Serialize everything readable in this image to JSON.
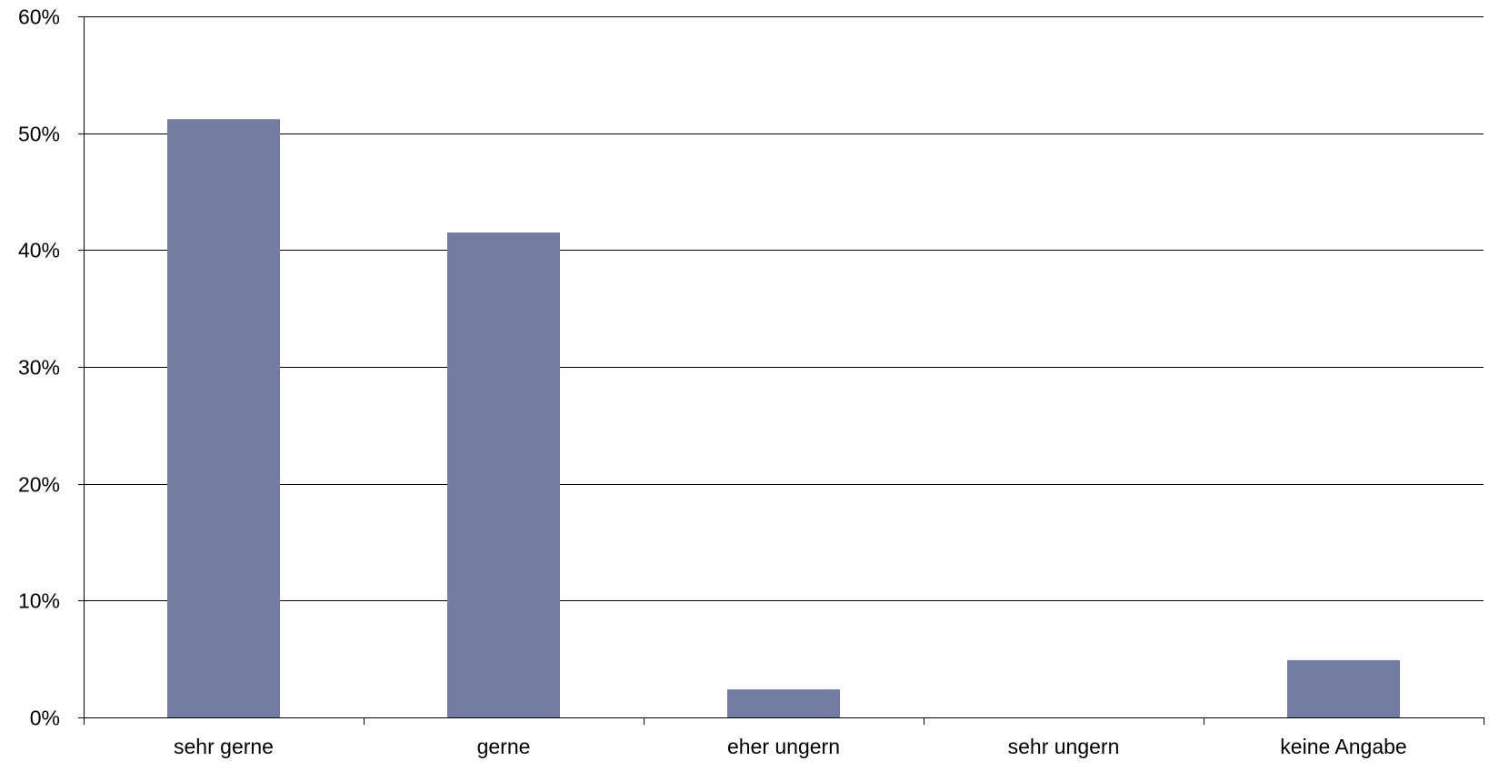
{
  "chart_data": {
    "type": "bar",
    "title": "",
    "xlabel": "",
    "ylabel": "",
    "categories": [
      "sehr gerne",
      "gerne",
      "eher ungern",
      "sehr ungern",
      "keine Angabe"
    ],
    "values": [
      51.2,
      41.5,
      2.4,
      0,
      4.9
    ],
    "ylim": [
      0,
      60
    ],
    "yticks": [
      0,
      10,
      20,
      30,
      40,
      50,
      60
    ],
    "ytick_labels": [
      "0%",
      "10%",
      "20%",
      "30%",
      "40%",
      "50%",
      "60%"
    ],
    "grid": true,
    "legend": "none",
    "bar_color": "#737DA1"
  }
}
